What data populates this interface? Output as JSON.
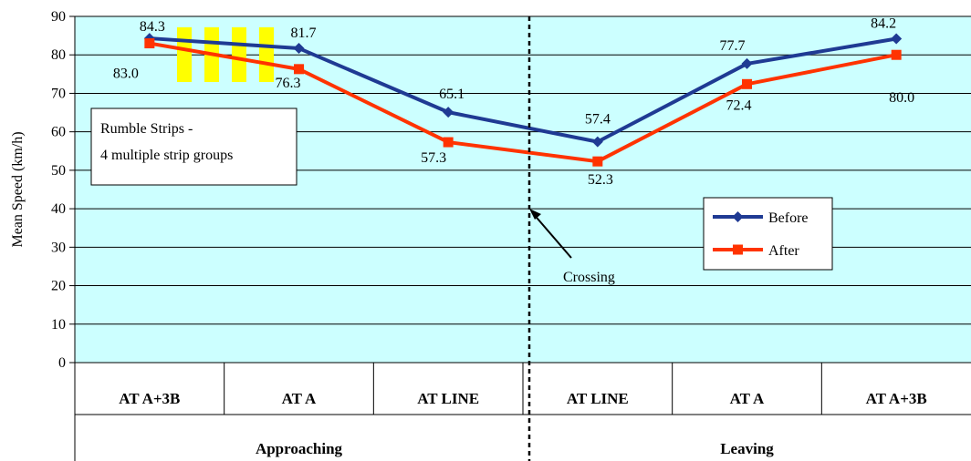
{
  "chart_data": {
    "type": "line",
    "ylabel": "Mean Speed (km/h)",
    "ylim": [
      0,
      90
    ],
    "yticks": [
      0,
      10,
      20,
      30,
      40,
      50,
      60,
      70,
      80,
      90
    ],
    "grid": true,
    "legend_position": "right",
    "categories": [
      "AT A+3B",
      "AT A",
      "AT LINE",
      "AT LINE",
      "AT A",
      "AT A+3B"
    ],
    "groups": [
      {
        "label": "Approaching",
        "span": [
          0,
          2
        ]
      },
      {
        "label": "Leaving",
        "span": [
          3,
          5
        ]
      }
    ],
    "series": [
      {
        "name": "Before",
        "color": "#1F3A93",
        "marker": "diamond",
        "values": [
          84.3,
          81.7,
          65.1,
          57.4,
          77.7,
          84.2
        ],
        "labels": [
          "84.3",
          "81.7",
          "65.1",
          "57.4",
          "77.7",
          "84.2"
        ]
      },
      {
        "name": "After",
        "color": "#FF3300",
        "marker": "square",
        "values": [
          83.0,
          76.3,
          57.3,
          52.3,
          72.4,
          80.0
        ],
        "labels": [
          "83.0",
          "76.3",
          "57.3",
          "52.3",
          "72.4",
          "80.0"
        ]
      }
    ],
    "annotations": {
      "note_lines": [
        "Rumble Strips -",
        "4 multiple strip groups"
      ],
      "crossing_label": "Crossing",
      "rumble_strip_count": 4,
      "rumble_strip_color": "#FFFF00"
    },
    "plot_background": "#CCFFFF"
  }
}
